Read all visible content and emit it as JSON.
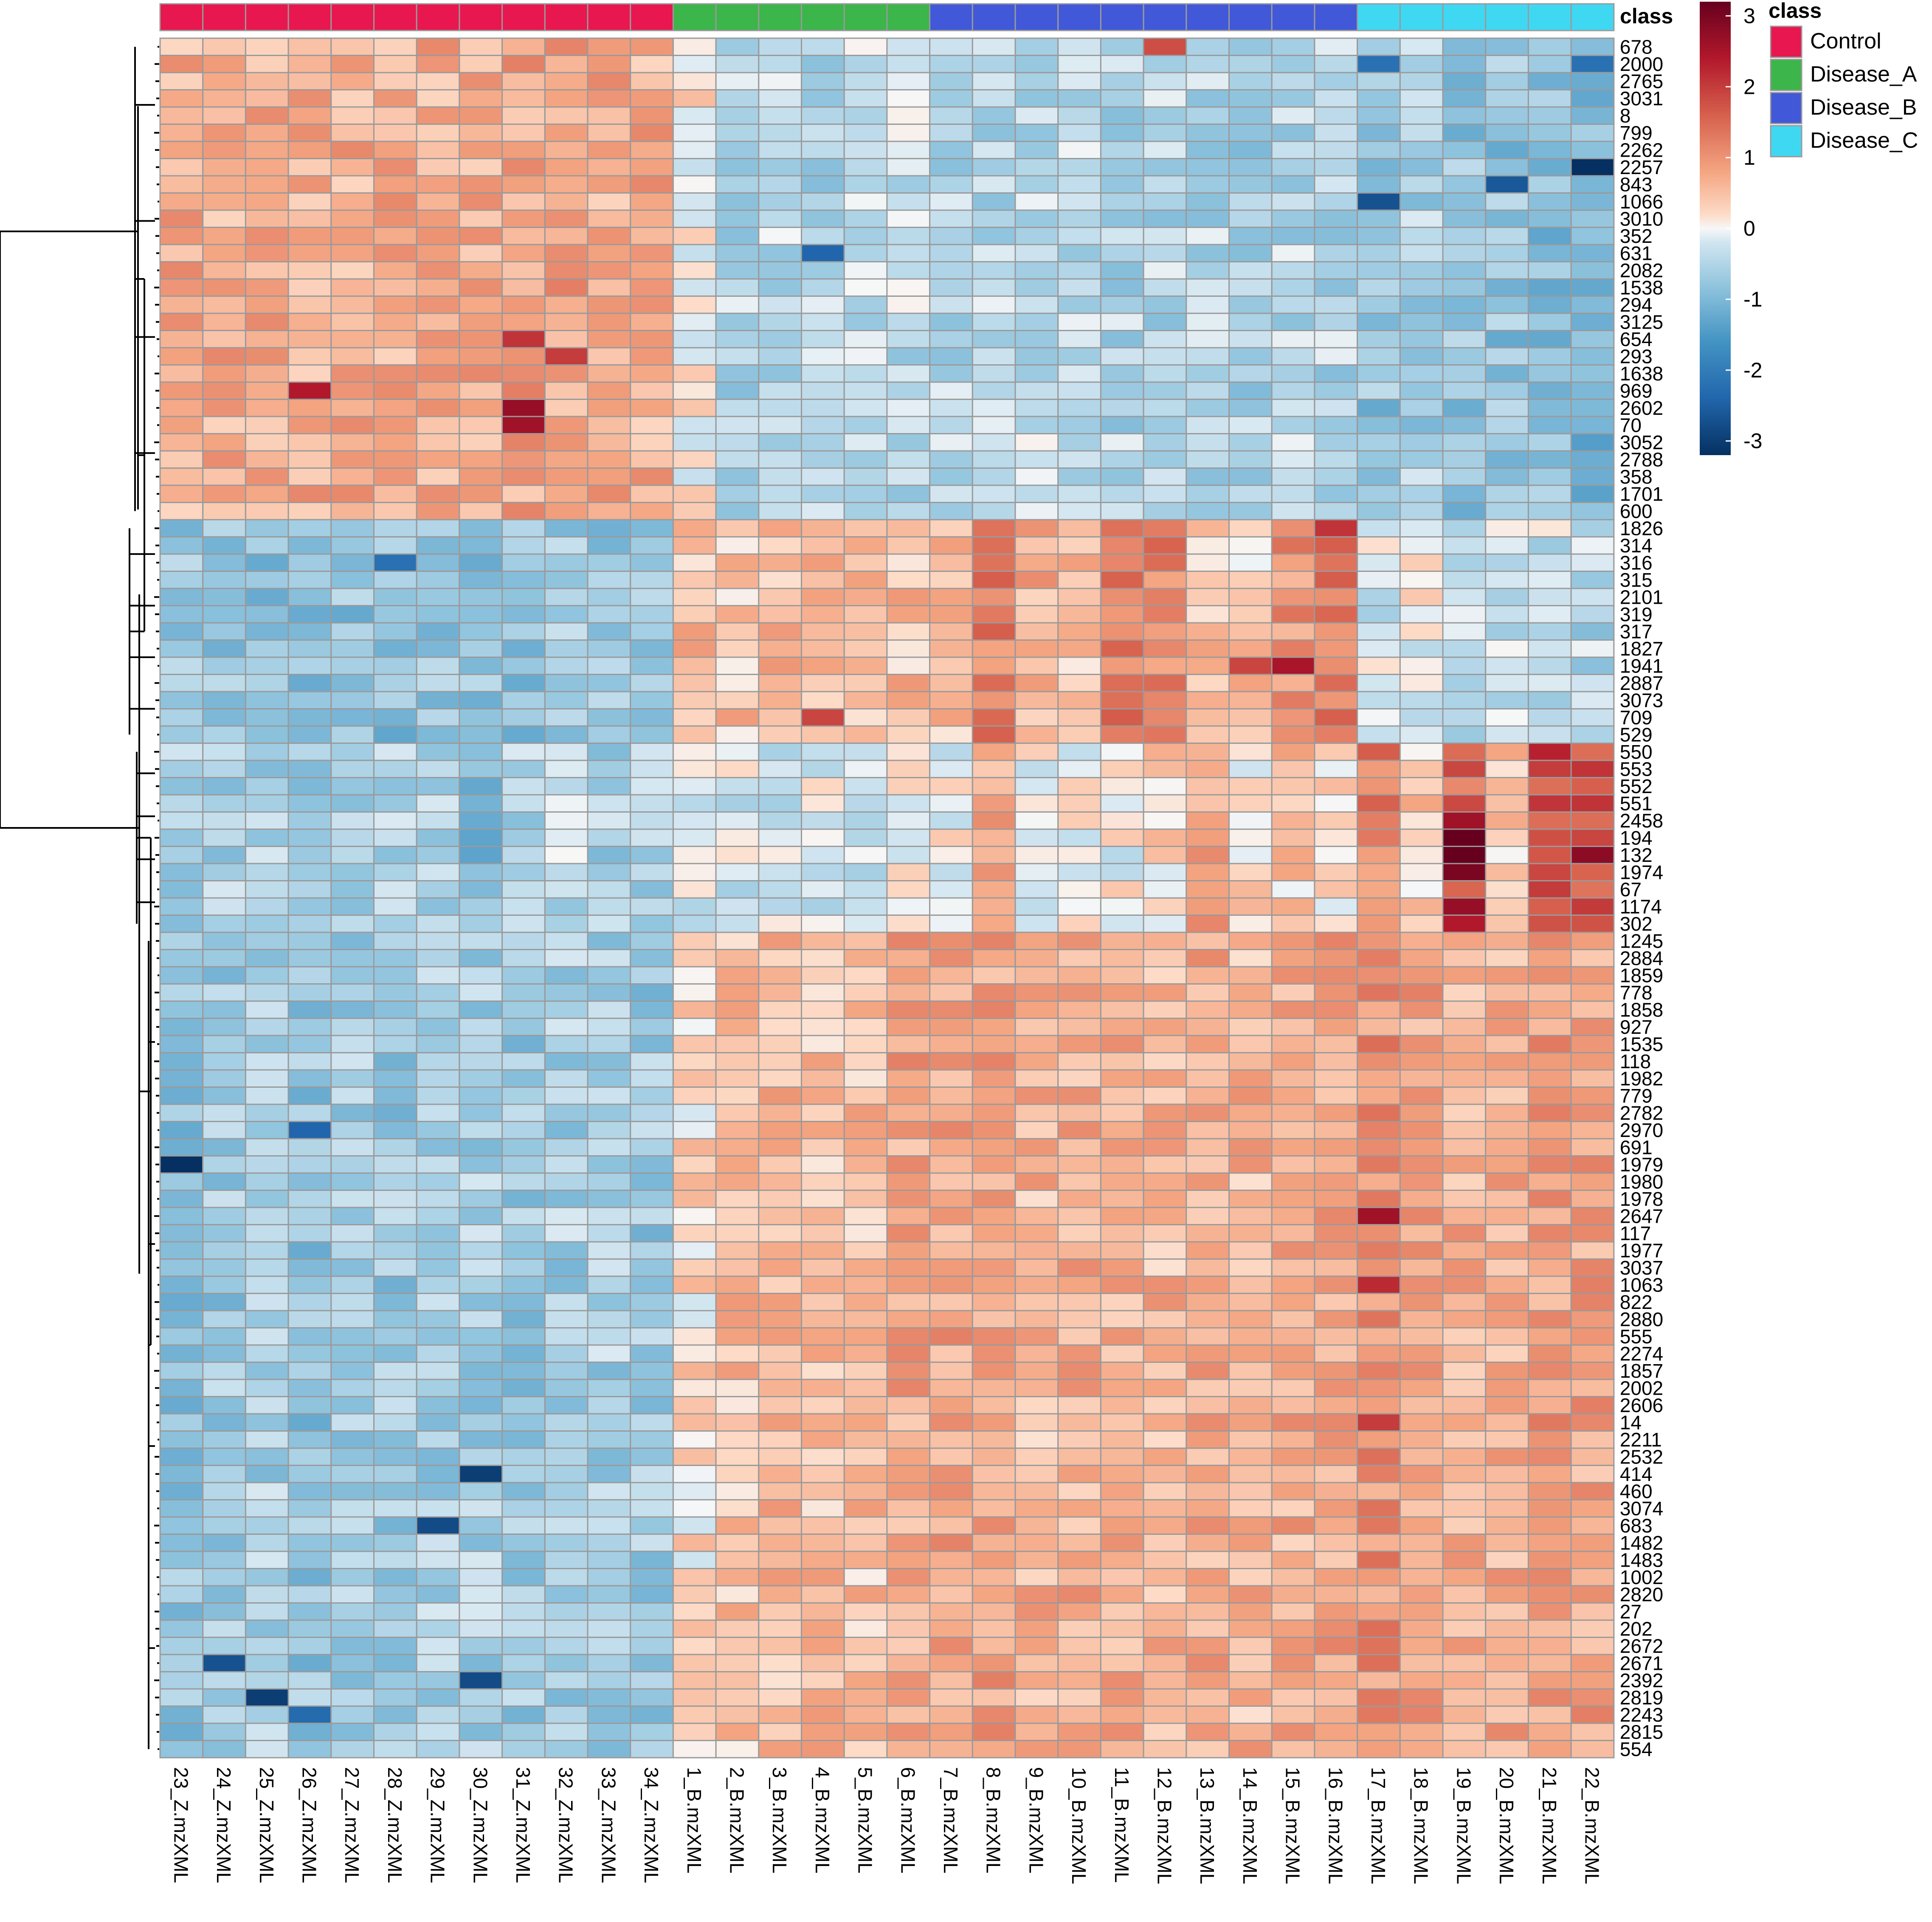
{
  "chart_data": {
    "type": "heatmap",
    "class_header": "class",
    "legend_title": "class",
    "colorbar": {
      "ticks": [
        3,
        2,
        1,
        0,
        -1,
        -2,
        -3
      ],
      "range": [
        -3.2,
        3.2
      ],
      "stops": [
        {
          "value": -3.2,
          "color": "#053061"
        },
        {
          "value": -2.4,
          "color": "#2166ac"
        },
        {
          "value": -1.6,
          "color": "#4393c3"
        },
        {
          "value": -0.8,
          "color": "#92c5de"
        },
        {
          "value": -0.2,
          "color": "#d1e5f0"
        },
        {
          "value": 0.0,
          "color": "#f7f7f7"
        },
        {
          "value": 0.2,
          "color": "#fddbc7"
        },
        {
          "value": 0.8,
          "color": "#f4a582"
        },
        {
          "value": 1.6,
          "color": "#d6604d"
        },
        {
          "value": 2.4,
          "color": "#b2182b"
        },
        {
          "value": 3.2,
          "color": "#67001f"
        }
      ]
    },
    "classes": [
      {
        "name": "Control",
        "color": "#e8174f"
      },
      {
        "name": "Disease_A",
        "color": "#3cb54a"
      },
      {
        "name": "Disease_B",
        "color": "#4158d8"
      },
      {
        "name": "Disease_C",
        "color": "#3fd8f2"
      }
    ],
    "columns": [
      "23_Z.mzXML",
      "24_Z.mzXML",
      "25_Z.mzXML",
      "26_Z.mzXML",
      "27_Z.mzXML",
      "28_Z.mzXML",
      "29_Z.mzXML",
      "30_Z.mzXML",
      "31_Z.mzXML",
      "32_Z.mzXML",
      "33_Z.mzXML",
      "34_Z.mzXML",
      "1_B.mzXML",
      "2_B.mzXML",
      "3_B.mzXML",
      "4_B.mzXML",
      "5_B.mzXML",
      "6_B.mzXML",
      "7_B.mzXML",
      "8_B.mzXML",
      "9_B.mzXML",
      "10_B.mzXML",
      "11_B.mzXML",
      "12_B.mzXML",
      "13_B.mzXML",
      "14_B.mzXML",
      "15_B.mzXML",
      "16_B.mzXML",
      "17_B.mzXML",
      "18_B.mzXML",
      "19_B.mzXML",
      "20_B.mzXML",
      "21_B.mzXML",
      "22_B.mzXML"
    ],
    "column_classes": [
      "Control",
      "Control",
      "Control",
      "Control",
      "Control",
      "Control",
      "Control",
      "Control",
      "Control",
      "Control",
      "Control",
      "Control",
      "Disease_A",
      "Disease_A",
      "Disease_A",
      "Disease_A",
      "Disease_A",
      "Disease_A",
      "Disease_B",
      "Disease_B",
      "Disease_B",
      "Disease_B",
      "Disease_B",
      "Disease_B",
      "Disease_B",
      "Disease_B",
      "Disease_B",
      "Disease_B",
      "Disease_C",
      "Disease_C",
      "Disease_C",
      "Disease_C",
      "Disease_C",
      "Disease_C"
    ],
    "rows": [
      "678",
      "2000",
      "2765",
      "3031",
      "8",
      "799",
      "2262",
      "2257",
      "843",
      "1066",
      "3010",
      "352",
      "631",
      "2082",
      "1538",
      "294",
      "3125",
      "654",
      "293",
      "1638",
      "969",
      "2602",
      "70",
      "3052",
      "2788",
      "358",
      "1701",
      "600",
      "1826",
      "314",
      "316",
      "315",
      "2101",
      "319",
      "317",
      "1827",
      "1941",
      "2887",
      "3073",
      "709",
      "529",
      "550",
      "553",
      "552",
      "551",
      "2458",
      "194",
      "132",
      "1974",
      "67",
      "1174",
      "302",
      "1245",
      "2884",
      "1859",
      "778",
      "1858",
      "927",
      "1535",
      "118",
      "1982",
      "779",
      "2782",
      "2970",
      "691",
      "1979",
      "1980",
      "1978",
      "2647",
      "117",
      "1977",
      "3037",
      "1063",
      "822",
      "2880",
      "555",
      "2274",
      "1857",
      "2002",
      "2606",
      "14",
      "2211",
      "2532",
      "414",
      "460",
      "3074",
      "683",
      "1482",
      "1483",
      "1002",
      "2820",
      "27",
      "202",
      "2672",
      "2671",
      "2392",
      "2819",
      "2243",
      "2815",
      "554"
    ],
    "row_cluster_boundaries": [
      28,
      41,
      52
    ],
    "cluster_profiles": [
      [
        0.7,
        0.7,
        0.7,
        0.7,
        0.7,
        0.7,
        0.7,
        0.7,
        0.8,
        0.8,
        0.7,
        0.7,
        0.1,
        -0.5,
        -0.4,
        -0.5,
        -0.4,
        -0.4,
        -0.5,
        -0.5,
        -0.4,
        -0.4,
        -0.5,
        -0.5,
        -0.5,
        -0.6,
        -0.5,
        -0.5,
        -0.8,
        -0.6,
        -0.8,
        -0.8,
        -0.9,
        -1.0
      ],
      [
        -0.8,
        -0.8,
        -0.8,
        -0.9,
        -0.8,
        -0.9,
        -0.8,
        -0.8,
        -0.8,
        -0.7,
        -0.8,
        -0.8,
        0.5,
        0.5,
        0.6,
        0.6,
        0.5,
        0.5,
        0.5,
        1.2,
        0.7,
        0.5,
        1.2,
        1.2,
        0.4,
        0.4,
        1.0,
        1.2,
        -0.2,
        0.0,
        -0.3,
        -0.3,
        -0.3,
        -0.5
      ],
      [
        -0.6,
        -0.6,
        -0.6,
        -0.6,
        -0.6,
        -0.5,
        -0.6,
        -0.9,
        -0.6,
        -0.4,
        -0.6,
        -0.6,
        -0.2,
        -0.2,
        -0.2,
        -0.2,
        -0.2,
        0.0,
        0.0,
        0.8,
        0.0,
        0.0,
        0.0,
        0.3,
        0.9,
        0.2,
        0.4,
        0.2,
        1.2,
        0.4,
        1.5,
        0.4,
        1.8,
        1.8
      ],
      [
        -0.8,
        -0.7,
        -0.6,
        -0.8,
        -0.6,
        -0.7,
        -0.6,
        -0.6,
        -0.7,
        -0.6,
        -0.6,
        -0.7,
        0.2,
        0.5,
        0.6,
        0.5,
        0.5,
        0.8,
        0.8,
        0.8,
        0.6,
        0.7,
        0.7,
        0.6,
        0.7,
        0.6,
        0.7,
        0.8,
        1.0,
        0.8,
        0.7,
        0.7,
        0.9,
        0.8
      ]
    ],
    "notable_cells": [
      {
        "row": "678",
        "column": "12_B.mzXML",
        "value": 1.8
      },
      {
        "row": "2000",
        "column": "17_B.mzXML",
        "value": -2.2
      },
      {
        "row": "2000",
        "column": "22_B.mzXML",
        "value": -2.2
      },
      {
        "row": "2257",
        "column": "22_B.mzXML",
        "value": -3.2
      },
      {
        "row": "843",
        "column": "20_B.mzXML",
        "value": -2.6
      },
      {
        "row": "1066",
        "column": "17_B.mzXML",
        "value": -2.7
      },
      {
        "row": "631",
        "column": "4_B.mzXML",
        "value": -2.4
      },
      {
        "row": "969",
        "column": "26_Z.mzXML",
        "value": 2.4
      },
      {
        "row": "2602",
        "column": "31_Z.mzXML",
        "value": 2.7
      },
      {
        "row": "70",
        "column": "31_Z.mzXML",
        "value": 2.6
      },
      {
        "row": "654",
        "column": "31_Z.mzXML",
        "value": 2.1
      },
      {
        "row": "293",
        "column": "32_Z.mzXML",
        "value": 2.0
      },
      {
        "row": "1826",
        "column": "16_B.mzXML",
        "value": 2.1
      },
      {
        "row": "1941",
        "column": "15_B.mzXML",
        "value": 2.5
      },
      {
        "row": "1941",
        "column": "14_B.mzXML",
        "value": 1.9
      },
      {
        "row": "316",
        "column": "28_Z.mzXML",
        "value": -2.2
      },
      {
        "row": "709",
        "column": "4_B.mzXML",
        "value": 1.9
      },
      {
        "row": "550",
        "column": "21_B.mzXML",
        "value": 2.3
      },
      {
        "row": "2458",
        "column": "19_B.mzXML",
        "value": 2.6
      },
      {
        "row": "194",
        "column": "19_B.mzXML",
        "value": 3.2
      },
      {
        "row": "132",
        "column": "19_B.mzXML",
        "value": 3.2
      },
      {
        "row": "132",
        "column": "22_B.mzXML",
        "value": 2.8
      },
      {
        "row": "1974",
        "column": "19_B.mzXML",
        "value": 3.0
      },
      {
        "row": "1174",
        "column": "19_B.mzXML",
        "value": 2.7
      },
      {
        "row": "302",
        "column": "19_B.mzXML",
        "value": 2.4
      },
      {
        "row": "1979",
        "column": "23_Z.mzXML",
        "value": -3.2
      },
      {
        "row": "2970",
        "column": "26_Z.mzXML",
        "value": -2.4
      },
      {
        "row": "2647",
        "column": "17_B.mzXML",
        "value": 2.6
      },
      {
        "row": "1063",
        "column": "17_B.mzXML",
        "value": 2.2
      },
      {
        "row": "14",
        "column": "17_B.mzXML",
        "value": 2.0
      },
      {
        "row": "414",
        "column": "30_Z.mzXML",
        "value": -3.0
      },
      {
        "row": "683",
        "column": "29_Z.mzXML",
        "value": -2.8
      },
      {
        "row": "2671",
        "column": "24_Z.mzXML",
        "value": -2.7
      },
      {
        "row": "2392",
        "column": "30_Z.mzXML",
        "value": -2.8
      },
      {
        "row": "2819",
        "column": "25_Z.mzXML",
        "value": -3.0
      },
      {
        "row": "2243",
        "column": "26_Z.mzXML",
        "value": -2.3
      }
    ]
  }
}
